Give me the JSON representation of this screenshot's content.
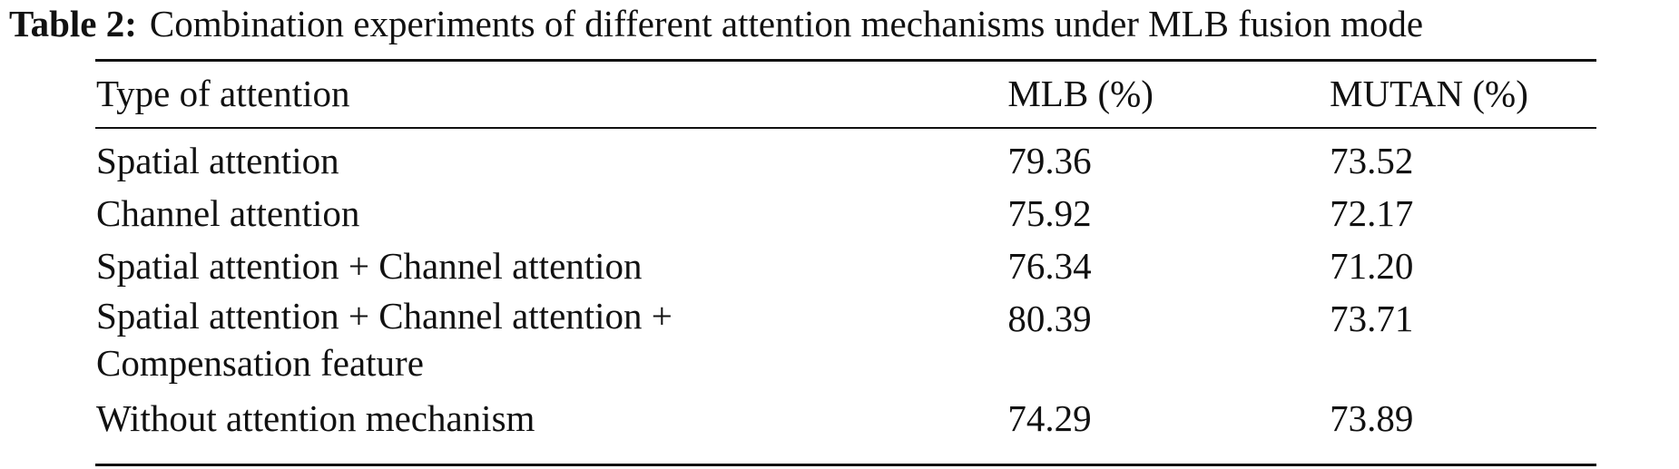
{
  "caption": {
    "label": "Table 2:",
    "text": "Combination experiments of different attention mechanisms under MLB fusion mode"
  },
  "table": {
    "headers": [
      "Type of attention",
      "MLB (%)",
      "MUTAN (%)"
    ],
    "rows": [
      {
        "type_line1": "Spatial attention",
        "type_line2": "",
        "mlb": "79.36",
        "mutan": "73.52",
        "mlb_bold": false
      },
      {
        "type_line1": "Channel attention",
        "type_line2": "",
        "mlb": "75.92",
        "mutan": "72.17",
        "mlb_bold": false
      },
      {
        "type_line1": "Spatial attention + Channel attention",
        "type_line2": "",
        "mlb": "76.34",
        "mutan": "71.20",
        "mlb_bold": false
      },
      {
        "type_line1": "Spatial attention + Channel attention +",
        "type_line2": "Compensation feature",
        "mlb": "80.39",
        "mutan": "73.71",
        "mlb_bold": true
      },
      {
        "type_line1": "Without attention mechanism",
        "type_line2": "",
        "mlb": "74.29",
        "mutan": "73.89",
        "mlb_bold": false
      }
    ]
  }
}
